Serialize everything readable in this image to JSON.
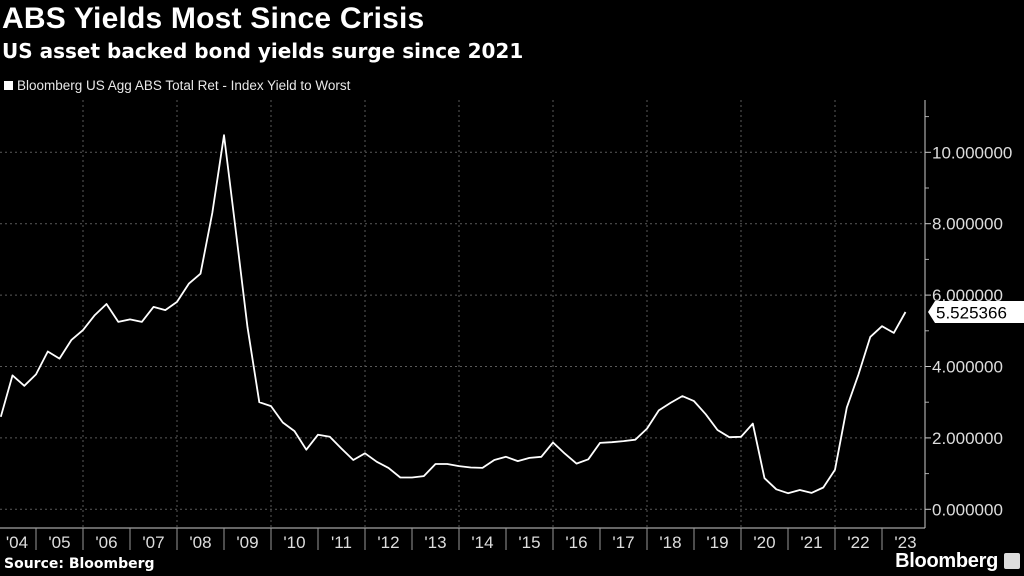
{
  "header": {
    "title": "ABS Yields Most Since Crisis",
    "subtitle": "US asset backed bond yields surge since 2021"
  },
  "footer": {
    "source": "Source: Bloomberg",
    "brand": "Bloomberg"
  },
  "colors": {
    "background": "#000000",
    "line": "#ffffff",
    "grid": "#555555",
    "text": "#dddddd"
  },
  "chart_data": {
    "type": "line",
    "title": "ABS Yields Most Since Crisis",
    "subtitle": "US asset backed bond yields surge since 2021",
    "xlabel": "",
    "ylabel": "",
    "ylim": [
      -0.5,
      11.5
    ],
    "xlim": [
      2004.23,
      2023.9
    ],
    "y_ticks": [
      0,
      2,
      4,
      6,
      8,
      10
    ],
    "y_tick_labels": [
      "0.000000",
      "2.000000",
      "4.000000",
      "6.000000",
      "8.000000",
      "10.000000"
    ],
    "x_tick_labels": [
      "'04",
      "'05",
      "'06",
      "'07",
      "'08",
      "'09",
      "'10",
      "'11",
      "'12",
      "'13",
      "'14",
      "'15",
      "'16",
      "'17",
      "'18",
      "'19",
      "'20",
      "'21",
      "'22",
      "'23"
    ],
    "x_tick_years": [
      2004,
      2005,
      2006,
      2007,
      2008,
      2009,
      2010,
      2011,
      2012,
      2013,
      2014,
      2015,
      2016,
      2017,
      2018,
      2019,
      2020,
      2021,
      2022,
      2023
    ],
    "grid": true,
    "legend_position": "top-left",
    "last_value_label": "5.525366",
    "series": [
      {
        "name": "Bloomberg US Agg ABS Total Ret - Index Yield to Worst",
        "x_start": 2004.25,
        "x_step": 0.25,
        "values": [
          2.59,
          3.75,
          3.46,
          3.78,
          4.42,
          4.22,
          4.74,
          5.02,
          5.44,
          5.75,
          5.25,
          5.32,
          5.25,
          5.67,
          5.58,
          5.81,
          6.32,
          6.6,
          8.3,
          10.48,
          7.8,
          5.1,
          3.0,
          2.89,
          2.43,
          2.19,
          1.67,
          2.09,
          2.03,
          1.7,
          1.38,
          1.57,
          1.33,
          1.16,
          0.89,
          0.89,
          0.93,
          1.27,
          1.27,
          1.21,
          1.17,
          1.16,
          1.38,
          1.47,
          1.35,
          1.44,
          1.47,
          1.87,
          1.56,
          1.28,
          1.4,
          1.86,
          1.88,
          1.91,
          1.95,
          2.26,
          2.77,
          2.98,
          3.17,
          3.03,
          2.66,
          2.22,
          2.02,
          2.03,
          2.4,
          0.87,
          0.56,
          0.45,
          0.54,
          0.46,
          0.61,
          1.11,
          2.85,
          3.78,
          4.83,
          5.13,
          4.94,
          5.525366
        ]
      }
    ]
  }
}
